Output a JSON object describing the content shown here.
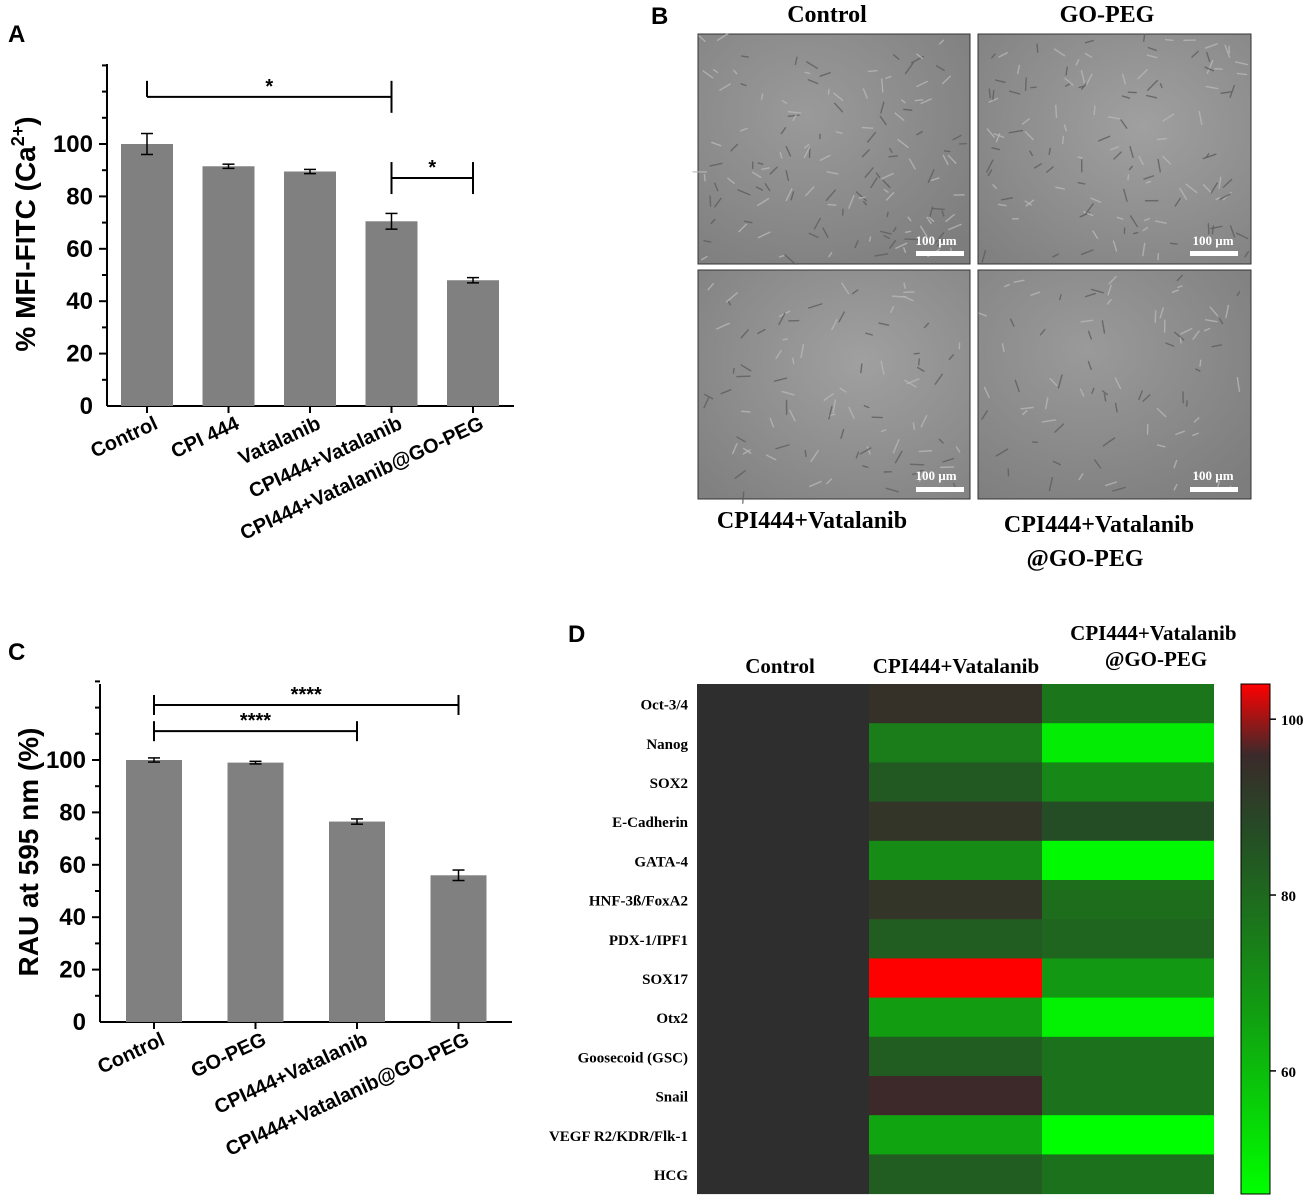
{
  "panels": {
    "a": {
      "letter": "A"
    },
    "b": {
      "letter": "B"
    },
    "c": {
      "letter": "C"
    },
    "d": {
      "letter": "D"
    }
  },
  "colors": {
    "bar": "#808080",
    "axis": "#000000",
    "micrograph_bg": "#8a8a8a",
    "heat_low": "#00ff00",
    "heat_mid": "#2e3a2e",
    "heat_high": "#ff0000"
  },
  "chart_data": [
    {
      "id": "A",
      "type": "bar",
      "ylabel_main": "% MFI-FITC (Ca",
      "ylabel_sup": "2+",
      "ylabel_tail": ")",
      "ylim": [
        0,
        130
      ],
      "yticks": [
        0,
        20,
        40,
        60,
        80,
        100
      ],
      "categories": [
        "Control",
        "CPI 444",
        "Vatalanib",
        "CPI444+Vatalanib",
        "CPI444+Vatalanib@GO-PEG"
      ],
      "values": [
        100,
        91.5,
        89.5,
        70.5,
        48
      ],
      "errors": [
        4,
        0.8,
        0.8,
        3,
        1
      ],
      "significance": [
        {
          "from": 0,
          "to": 3,
          "label": "*",
          "y": 118
        },
        {
          "from": 3,
          "to": 4,
          "label": "*",
          "y": 87
        }
      ]
    },
    {
      "id": "C",
      "type": "bar",
      "ylabel": "RAU at 595 nm (%)",
      "ylim": [
        0,
        130
      ],
      "yticks": [
        0,
        20,
        40,
        60,
        80,
        100
      ],
      "categories": [
        "Control",
        "GO-PEG",
        "CPI444+Vatalanib",
        "CPI444+Vatalanib@GO-PEG"
      ],
      "values": [
        100,
        99,
        76.5,
        56
      ],
      "errors": [
        0.8,
        0.5,
        1,
        2
      ],
      "significance": [
        {
          "from": 0,
          "to": 3,
          "label": "****",
          "y": 121
        },
        {
          "from": 0,
          "to": 2,
          "label": "****",
          "y": 111
        }
      ]
    },
    {
      "id": "D",
      "type": "heatmap",
      "columns": [
        "Control",
        "CPI444+Vatalanib",
        "CPI444+Vatalanib\n@GO-PEG"
      ],
      "rows": [
        "Oct-3/4",
        "Nanog",
        "SOX2",
        "E-Cadherin",
        "GATA-4",
        "HNF-3ß/FoxA2",
        "PDX-1/IPF1",
        "SOX17",
        "Otx2",
        "Goosecoid (GSC)",
        "Snail",
        "VEGF R2/KDR/Flk-1",
        "HCG"
      ],
      "values": [
        [
          100,
          94,
          77
        ],
        [
          100,
          75,
          50
        ],
        [
          100,
          84,
          72
        ],
        [
          100,
          93,
          87
        ],
        [
          100,
          71,
          47
        ],
        [
          100,
          93,
          79
        ],
        [
          100,
          83,
          81
        ],
        [
          100,
          104,
          68
        ],
        [
          100,
          67,
          49
        ],
        [
          100,
          83,
          78
        ],
        [
          100,
          96,
          78
        ],
        [
          100,
          65,
          46
        ],
        [
          100,
          83,
          78
        ]
      ],
      "colorbar_ticks": [
        60,
        80,
        100
      ],
      "vrange": [
        46,
        104
      ]
    }
  ],
  "micrographs": [
    {
      "caption": "Control",
      "scale": "100 µm"
    },
    {
      "caption": "GO-PEG",
      "scale": "100 µm"
    },
    {
      "caption": "CPI444+Vatalanib",
      "scale": "100 µm"
    },
    {
      "caption_line1": "CPI444+Vatalanib",
      "caption_line2": "@GO-PEG",
      "scale": "100 µm"
    }
  ]
}
